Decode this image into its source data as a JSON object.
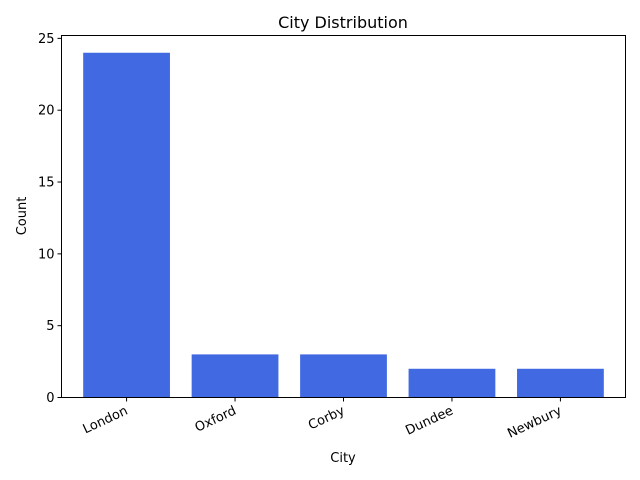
{
  "chart_data": {
    "type": "bar",
    "title": "City Distribution",
    "xlabel": "City",
    "ylabel": "Count",
    "categories": [
      "London",
      "Oxford",
      "Corby",
      "Dundee",
      "Newbury"
    ],
    "values": [
      24,
      3,
      3,
      2,
      2
    ],
    "ylim": [
      0,
      25.2
    ],
    "yticks": [
      0,
      5,
      10,
      15,
      20,
      25
    ],
    "grid": false,
    "bar_color": "#4169E1",
    "x_tick_rotation_deg": 25
  }
}
